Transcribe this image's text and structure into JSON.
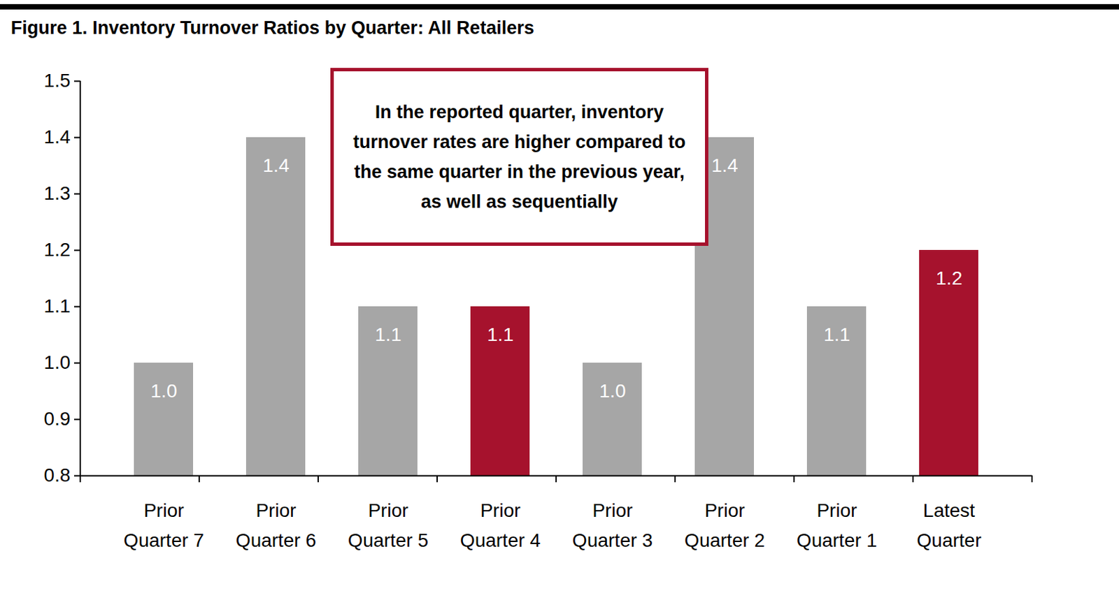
{
  "chart_data": {
    "type": "bar",
    "title": "Figure 1. Inventory Turnover Ratios by Quarter: All Retailers",
    "annotation": "In the reported quarter, inventory turnover rates are higher compared to the same quarter in the previous year, as well as sequentially",
    "categories": [
      "Prior Quarter 7",
      "Prior Quarter 6",
      "Prior Quarter 5",
      "Prior Quarter 4",
      "Prior Quarter 3",
      "Prior Quarter 2",
      "Prior Quarter 1",
      "Latest Quarter"
    ],
    "values": [
      1.0,
      1.4,
      1.1,
      1.1,
      1.0,
      1.4,
      1.1,
      1.2
    ],
    "value_labels": [
      "1.0",
      "1.4",
      "1.1",
      "1.1",
      "1.0",
      "1.4",
      "1.1",
      "1.2"
    ],
    "colors": [
      "#a6a6a6",
      "#a6a6a6",
      "#a6a6a6",
      "#a6122d",
      "#a6a6a6",
      "#a6a6a6",
      "#a6a6a6",
      "#a6122d"
    ],
    "ylim": [
      0.8,
      1.5
    ],
    "yticks": [
      0.8,
      0.9,
      {
        "value": 1.0,
        "label": "1.0"
      },
      1.1,
      1.2,
      1.3,
      1.4,
      1.5
    ],
    "grid": false,
    "data_labels": true
  }
}
